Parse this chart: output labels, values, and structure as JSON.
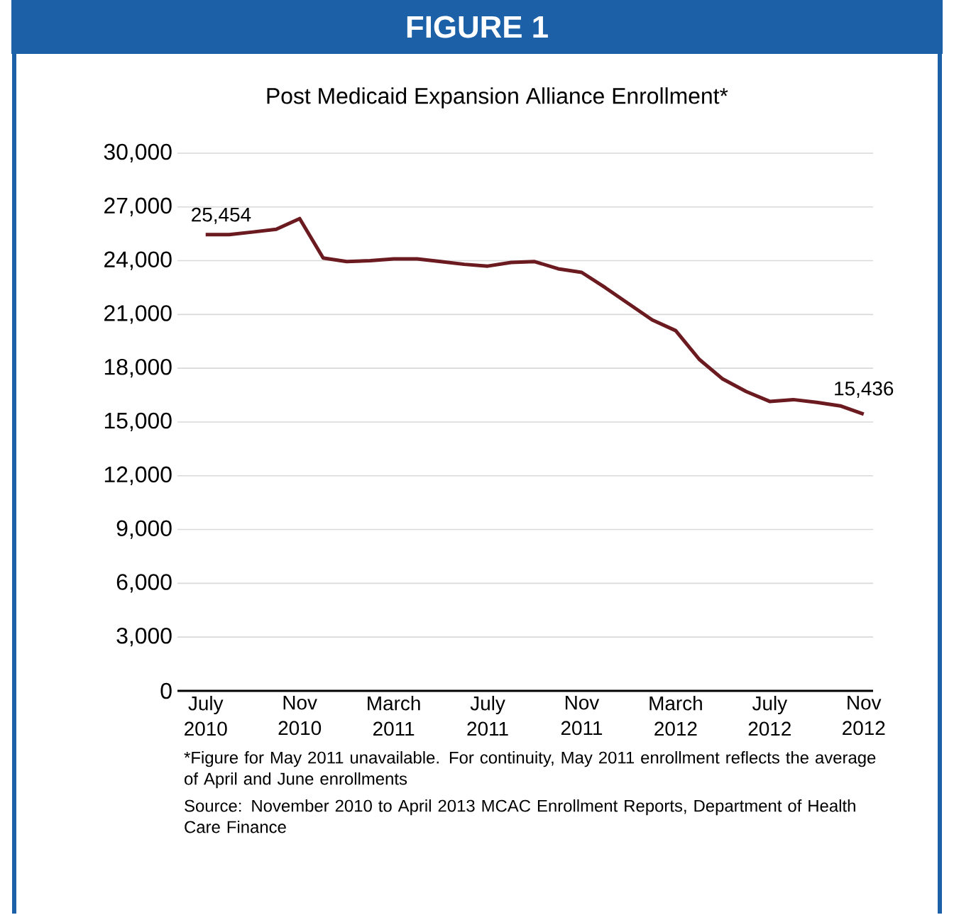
{
  "chart_data": {
    "type": "line",
    "title": "FIGURE 1",
    "subtitle": "Post Medicaid Expansion Alliance Enrollment*",
    "categories": [
      "July 2010",
      null,
      null,
      null,
      "Nov 2010",
      null,
      null,
      null,
      "March 2011",
      null,
      null,
      null,
      "July 2011",
      null,
      null,
      null,
      "Nov 2011",
      null,
      null,
      null,
      "March 2012",
      null,
      null,
      null,
      "July 2012",
      null,
      null,
      null,
      "Nov 2012"
    ],
    "series": [
      {
        "color": "#6b1a1f",
        "values": [
          25454,
          25454,
          25600,
          25750,
          26350,
          24150,
          23950,
          24000,
          24100,
          24100,
          23950,
          23800,
          23700,
          23900,
          23950,
          23550,
          23350,
          22500,
          21600,
          20700,
          20100,
          18500,
          17400,
          16700,
          16150,
          16250,
          16100,
          15900,
          15436
        ],
        "value_labels": [
          "25,454",
          null,
          null,
          null,
          null,
          null,
          null,
          null,
          null,
          null,
          null,
          null,
          null,
          null,
          null,
          null,
          null,
          null,
          null,
          null,
          null,
          null,
          null,
          null,
          null,
          null,
          null,
          null,
          "15,436"
        ]
      }
    ],
    "ylim": [
      0,
      30000
    ],
    "yticks": [
      {
        "value": 0,
        "label": "0"
      },
      {
        "value": 3000,
        "label": "3,000"
      },
      {
        "value": 6000,
        "label": "6,000"
      },
      {
        "value": 9000,
        "label": "9,000"
      },
      {
        "value": 12000,
        "label": "12,000"
      },
      {
        "value": 15000,
        "label": "15,000"
      },
      {
        "value": 18000,
        "label": "18,000"
      },
      {
        "value": 21000,
        "label": "21,000"
      },
      {
        "value": 24000,
        "label": "24,000"
      },
      {
        "value": 27000,
        "label": "27,000"
      },
      {
        "value": 30000,
        "label": "30,000"
      }
    ],
    "grid": "y",
    "annotations": [
      "*Figure for May 2011 unavailable. For continuity, May 2011 enrollment reflects the average of April and June enrollments",
      "Source: November 2010 to April 2013 MCAC Enrollment Reports, Department of Health Care Finance"
    ]
  }
}
